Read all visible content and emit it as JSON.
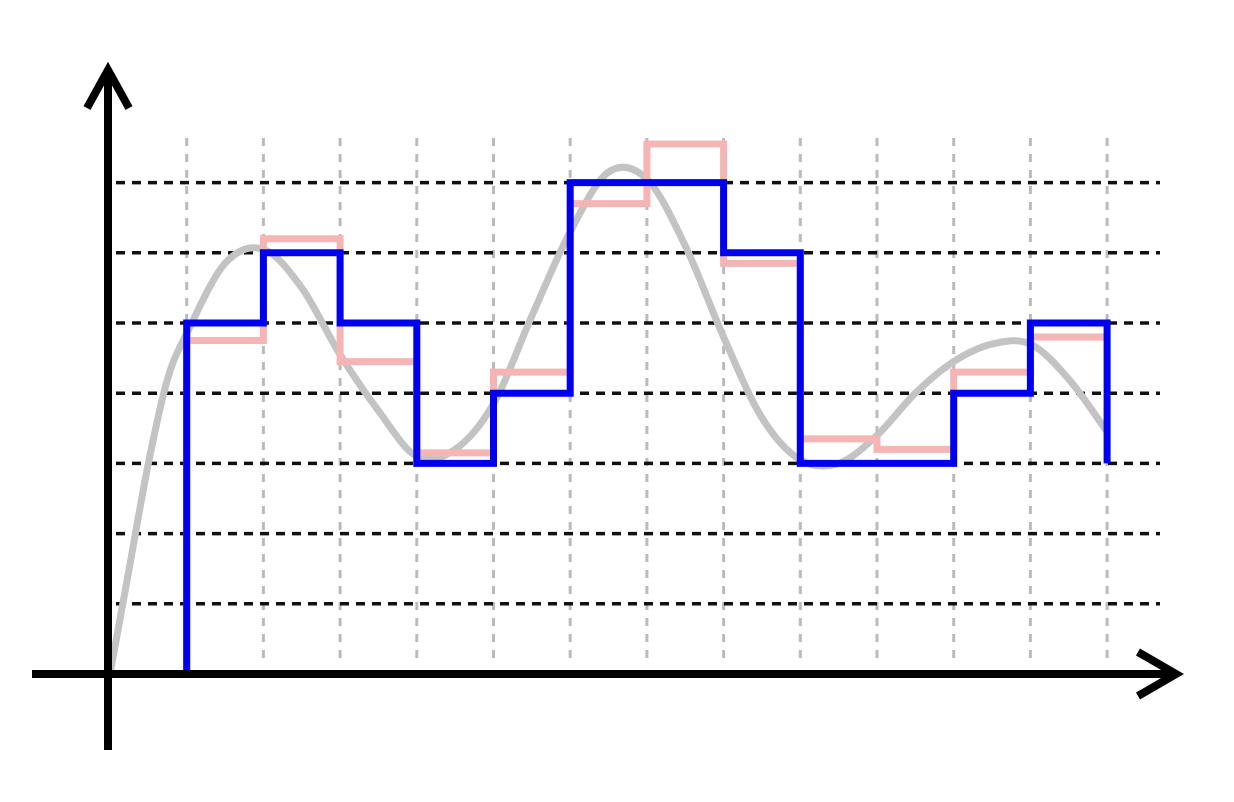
{
  "chart_data": {
    "type": "line",
    "xlim": [
      0,
      13
    ],
    "ylim": [
      0,
      7
    ],
    "sample_x": [
      0,
      1,
      2,
      3,
      4,
      5,
      6,
      7,
      8,
      9,
      10,
      11,
      12,
      13
    ],
    "grid": {
      "vertical": true,
      "horizontal": true,
      "vertical_style": "dashed light gray",
      "horizontal_style": "dashed black"
    },
    "series": [
      {
        "role": "analog-signal",
        "style": "smooth curve",
        "color": "#c3c3c3",
        "points": [
          [
            0,
            0
          ],
          [
            0.25,
            1.5
          ],
          [
            0.5,
            3.0
          ],
          [
            0.75,
            4.2
          ],
          [
            1,
            4.85
          ],
          [
            1.5,
            5.85
          ],
          [
            2,
            6.05
          ],
          [
            2.5,
            5.5
          ],
          [
            3,
            4.55
          ],
          [
            3.5,
            3.75
          ],
          [
            4,
            3.1
          ],
          [
            4.5,
            3.2
          ],
          [
            5,
            3.85
          ],
          [
            5.5,
            5.1
          ],
          [
            6,
            6.3
          ],
          [
            6.5,
            7.15
          ],
          [
            7,
            7.05
          ],
          [
            7.5,
            6.1
          ],
          [
            8,
            4.8
          ],
          [
            8.5,
            3.65
          ],
          [
            9,
            3.05
          ],
          [
            9.5,
            3.0
          ],
          [
            10,
            3.4
          ],
          [
            10.5,
            4.0
          ],
          [
            11,
            4.45
          ],
          [
            11.5,
            4.7
          ],
          [
            12,
            4.7
          ],
          [
            12.5,
            4.2
          ],
          [
            13,
            3.45
          ]
        ]
      },
      {
        "role": "sample-hold",
        "style": "step",
        "color": "#f5b5b5",
        "values": [
          0,
          4.75,
          6.2,
          4.45,
          3.15,
          4.3,
          6.7,
          7.55,
          5.85,
          3.35,
          3.2,
          4.3,
          4.8
        ]
      },
      {
        "role": "quantized",
        "style": "step",
        "color": "#0000ee",
        "values": [
          0,
          5,
          6,
          5,
          3,
          4,
          7,
          7,
          6,
          3,
          3,
          4,
          5
        ],
        "end_value": 3
      }
    ]
  }
}
